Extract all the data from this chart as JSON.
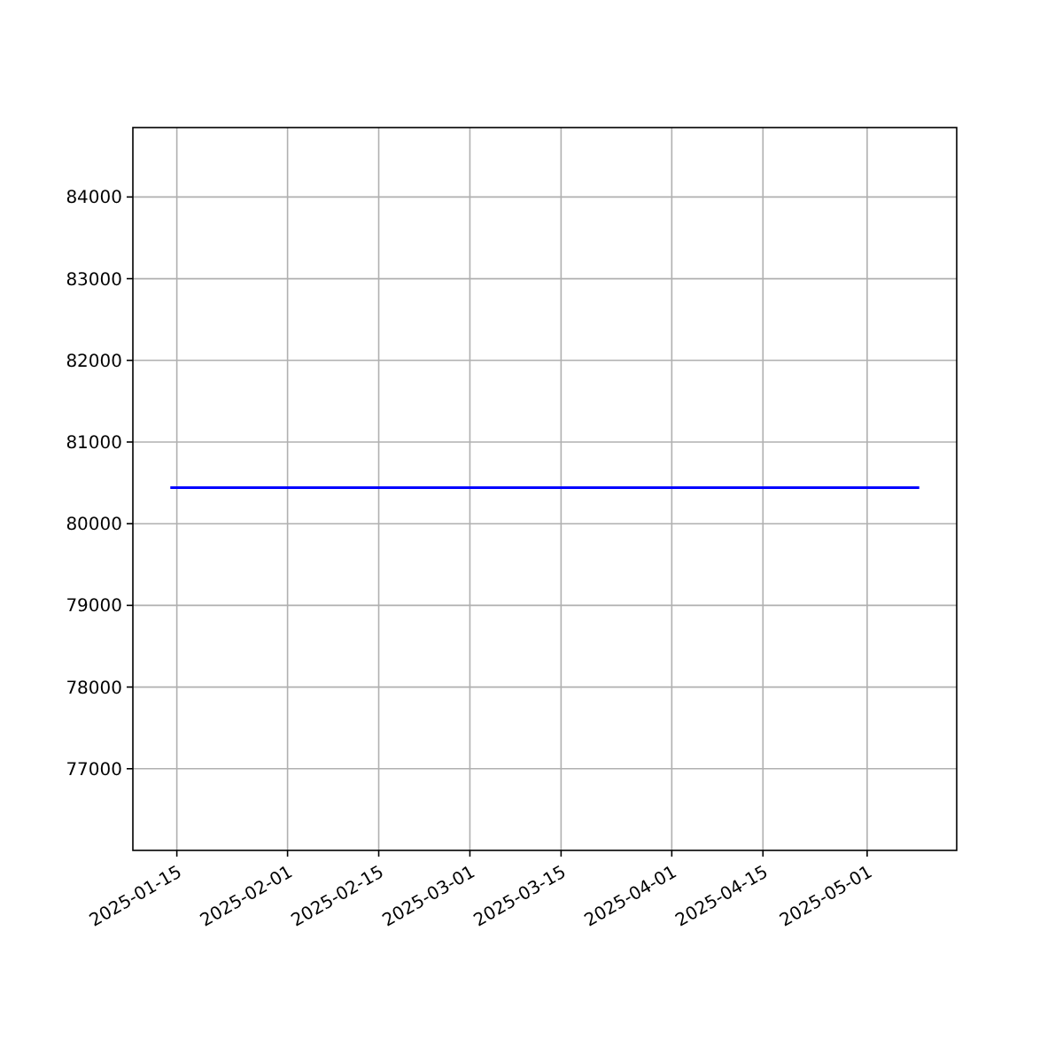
{
  "chart_data": {
    "type": "line",
    "x": [
      "2025-01-14",
      "2025-05-09"
    ],
    "series": [
      {
        "color": "#0000ff",
        "values": [
          80440,
          80440
        ]
      }
    ],
    "xlim": [
      "2025-01-08T06:00",
      "2025-05-14T18:00"
    ],
    "xticks": [
      "2025-01-15",
      "2025-02-01",
      "2025-02-15",
      "2025-03-01",
      "2025-03-15",
      "2025-04-01",
      "2025-04-15",
      "2025-05-01"
    ],
    "ylim": [
      76000,
      84850
    ],
    "yticks": [
      77000,
      78000,
      79000,
      80000,
      81000,
      82000,
      83000,
      84000
    ],
    "grid": true
  }
}
